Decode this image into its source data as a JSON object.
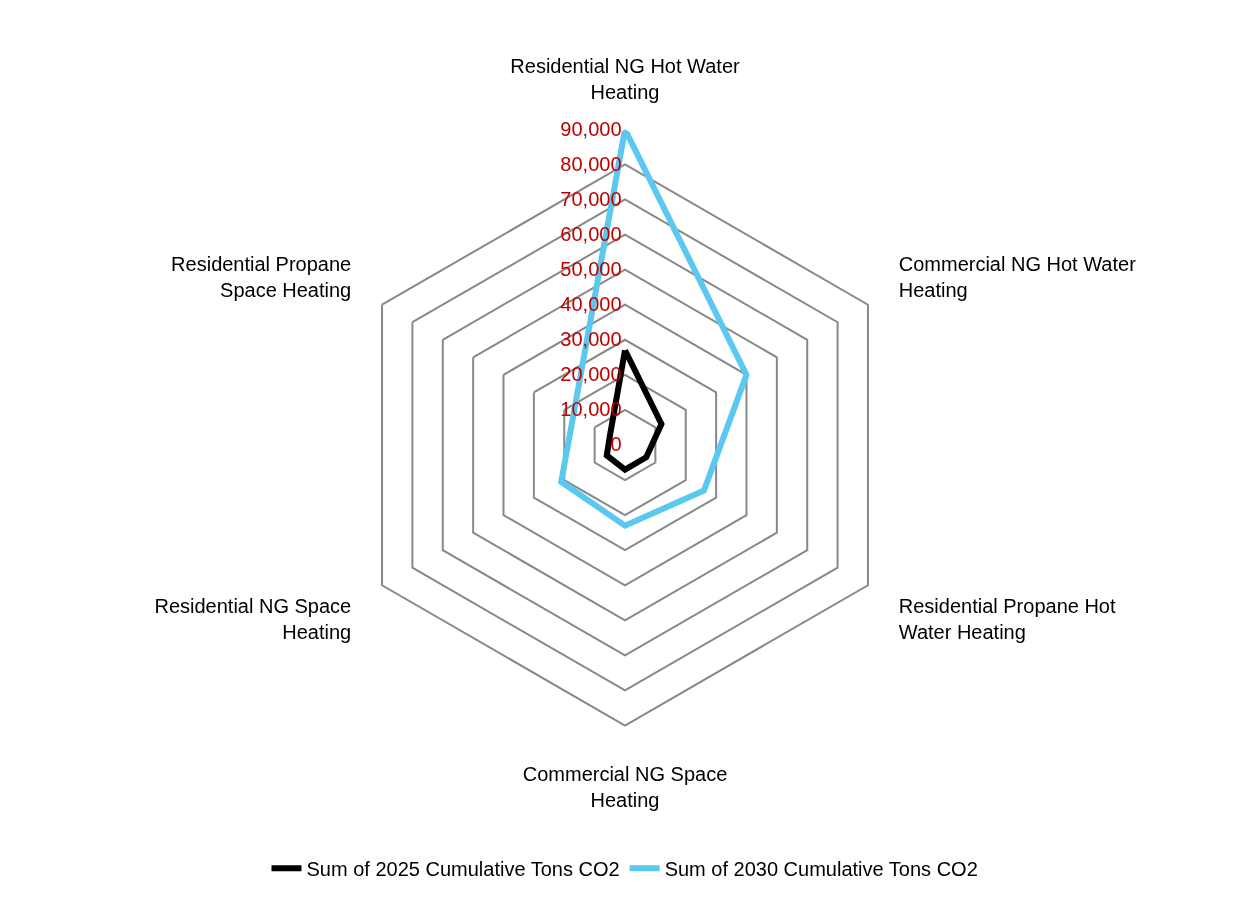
{
  "chart_data": {
    "type": "radar",
    "categories": [
      "Residential NG Hot Water Heating",
      "Commercial NG Hot Water Heating",
      "Residential Propane Hot Water Heating",
      "Commercial NG Space Heating",
      "Residential NG Space Heating",
      "Residential Propane Space Heating"
    ],
    "series": [
      {
        "name": "Sum of 2025 Cumulative Tons CO2",
        "color": "#000000",
        "values": [
          27000,
          12000,
          7000,
          7000,
          6000,
          5000
        ]
      },
      {
        "name": "Sum of 2030 Cumulative Tons CO2",
        "color": "#5bc8f0",
        "values": [
          90000,
          40000,
          26000,
          23000,
          21000,
          17000
        ]
      }
    ],
    "ylim": [
      0,
      90000
    ],
    "yticks": [
      0,
      {
        "value": 10000,
        "label": "10,000"
      },
      {
        "value": 20000,
        "label": "20,000"
      },
      {
        "value": 30000,
        "label": "30,000"
      },
      {
        "value": 40000,
        "label": "40,000"
      },
      {
        "value": 50000,
        "label": "50,000"
      },
      {
        "value": 60000,
        "label": "60,000"
      },
      {
        "value": 70000,
        "label": "70,000"
      },
      {
        "value": 80000,
        "label": "80,000"
      },
      {
        "value": 90000,
        "label": "90,000"
      }
    ],
    "legend": "bottom",
    "marker": "none",
    "line_style": "solid"
  }
}
